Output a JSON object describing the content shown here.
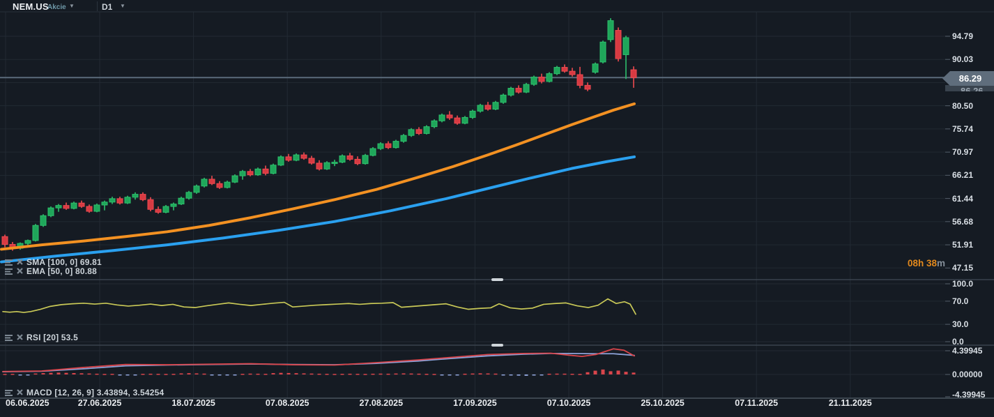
{
  "toolbar": {
    "symbol": "NEM.US",
    "instrument_type": "Akcie",
    "timeframe": "D1"
  },
  "timer": {
    "value": "08h 38",
    "unit": "m"
  },
  "price_tag": {
    "current": "86.29",
    "secondary": "86.26"
  },
  "indicator_labels": {
    "sma": "SMA [100, 0] 69.81",
    "ema": "EMA [50, 0] 80.88",
    "rsi": "RSI [20] 53.5",
    "macd": "MACD [12, 26, 9] 3.43894, 3.54254"
  },
  "price_axis_labels": [
    "94.79",
    "90.03",
    "80.50",
    "75.74",
    "70.97",
    "66.21",
    "61.44",
    "56.68",
    "51.91",
    "47.15"
  ],
  "rsi_axis_labels": [
    "100.0",
    "70.0",
    "30.0",
    "0.0"
  ],
  "macd_axis_labels": [
    "4.39945",
    "0.00000",
    "-4.39945"
  ],
  "date_axis_labels": [
    "06.06.2025",
    "27.06.2025",
    "18.07.2025",
    "07.08.2025",
    "27.08.2025",
    "17.09.2025",
    "07.10.2025",
    "25.10.2025",
    "07.11.2025",
    "21.11.2025"
  ],
  "colors": {
    "background": "#151b23",
    "grid": "#222a33",
    "separator": "#3a434e",
    "bottom_separator": "#4a545e",
    "price_line": "#5b6b7b",
    "candle_up": "#1fa65a",
    "candle_up_edge": "#2dc06c",
    "candle_down": "#d73a42",
    "candle_down_edge": "#ef4a50",
    "ema_line": "#f39122",
    "sma_line": "#2aa0ef",
    "rsi_line": "#c9c957",
    "macd_line": "#d8454b",
    "macd_signal": "#8fa3da",
    "timer_text": "#e2891d",
    "tag_bg": "#5f6d7c"
  },
  "chart_data": {
    "type": "candlestick",
    "title": "NEM.US Akcie D1",
    "y_axis": {
      "visible_ticks": [
        94.79,
        90.03,
        80.5,
        75.74,
        70.97,
        66.21,
        61.44,
        56.68,
        51.91,
        47.15
      ],
      "tick_step": 4.76,
      "current_price": 86.29,
      "range": [
        47.15,
        98.5
      ],
      "grid": true
    },
    "x_axis": {
      "tick_labels": [
        "06.06.2025",
        "27.06.2025",
        "18.07.2025",
        "07.08.2025",
        "27.08.2025",
        "17.09.2025",
        "07.10.2025",
        "25.10.2025",
        "07.11.2025",
        "21.11.2025"
      ],
      "grid": true
    },
    "candles_ohlc": [
      [
        53.6,
        54.0,
        51.4,
        52.0
      ],
      [
        52.0,
        52.5,
        50.7,
        51.2
      ],
      [
        51.2,
        52.4,
        50.9,
        52.2
      ],
      [
        52.2,
        53.0,
        51.8,
        52.8
      ],
      [
        52.8,
        56.2,
        52.6,
        55.9
      ],
      [
        55.9,
        58.2,
        55.6,
        57.9
      ],
      [
        57.9,
        59.8,
        57.6,
        59.5
      ],
      [
        59.5,
        60.3,
        58.7,
        60.0
      ],
      [
        60.0,
        60.6,
        59.1,
        59.4
      ],
      [
        59.4,
        60.8,
        59.2,
        60.5
      ],
      [
        60.5,
        61.0,
        59.5,
        59.8
      ],
      [
        59.8,
        60.2,
        58.5,
        58.8
      ],
      [
        58.8,
        60.4,
        58.6,
        60.1
      ],
      [
        60.1,
        61.0,
        59.0,
        60.7
      ],
      [
        60.7,
        61.8,
        60.3,
        61.4
      ],
      [
        61.4,
        61.8,
        60.2,
        60.5
      ],
      [
        60.5,
        62.0,
        60.3,
        61.7
      ],
      [
        61.7,
        62.7,
        61.2,
        62.3
      ],
      [
        62.3,
        62.7,
        60.9,
        61.2
      ],
      [
        61.2,
        61.7,
        58.8,
        59.2
      ],
      [
        59.2,
        59.8,
        58.3,
        58.6
      ],
      [
        58.6,
        60.1,
        58.4,
        59.8
      ],
      [
        59.8,
        60.6,
        59.0,
        60.3
      ],
      [
        60.3,
        61.8,
        60.1,
        61.5
      ],
      [
        61.5,
        63.0,
        61.2,
        62.7
      ],
      [
        62.7,
        64.3,
        62.4,
        64.0
      ],
      [
        64.0,
        65.7,
        63.7,
        65.4
      ],
      [
        65.4,
        66.1,
        64.2,
        64.5
      ],
      [
        64.5,
        65.0,
        63.4,
        63.7
      ],
      [
        63.7,
        65.1,
        63.5,
        64.8
      ],
      [
        64.8,
        66.4,
        64.6,
        66.1
      ],
      [
        66.1,
        67.3,
        65.3,
        67.0
      ],
      [
        67.0,
        67.5,
        66.0,
        66.3
      ],
      [
        66.3,
        67.8,
        66.1,
        67.5
      ],
      [
        67.5,
        68.2,
        66.2,
        66.6
      ],
      [
        66.6,
        68.6,
        66.4,
        68.3
      ],
      [
        68.3,
        70.3,
        68.1,
        70.0
      ],
      [
        70.0,
        70.6,
        69.0,
        69.3
      ],
      [
        69.3,
        70.7,
        69.1,
        70.4
      ],
      [
        70.4,
        70.9,
        69.4,
        69.7
      ],
      [
        69.7,
        70.2,
        68.4,
        68.7
      ],
      [
        68.7,
        69.3,
        67.2,
        67.5
      ],
      [
        67.5,
        69.1,
        67.3,
        68.8
      ],
      [
        68.8,
        69.4,
        68.1,
        68.9
      ],
      [
        68.9,
        70.5,
        68.7,
        70.2
      ],
      [
        70.2,
        70.8,
        69.2,
        69.5
      ],
      [
        69.5,
        70.1,
        68.3,
        68.6
      ],
      [
        68.6,
        70.6,
        68.4,
        70.3
      ],
      [
        70.3,
        72.0,
        70.1,
        71.7
      ],
      [
        71.7,
        73.0,
        71.4,
        72.7
      ],
      [
        72.7,
        73.2,
        71.6,
        71.9
      ],
      [
        71.9,
        73.5,
        71.7,
        73.2
      ],
      [
        73.2,
        74.7,
        72.9,
        74.4
      ],
      [
        74.4,
        75.9,
        74.1,
        75.6
      ],
      [
        75.6,
        76.1,
        74.5,
        74.8
      ],
      [
        74.8,
        76.5,
        74.6,
        76.2
      ],
      [
        76.2,
        77.7,
        75.9,
        77.4
      ],
      [
        77.4,
        78.9,
        77.1,
        78.6
      ],
      [
        78.6,
        79.4,
        77.6,
        78.0
      ],
      [
        78.0,
        78.5,
        76.6,
        76.9
      ],
      [
        76.9,
        78.4,
        76.7,
        78.1
      ],
      [
        78.1,
        79.7,
        77.8,
        79.4
      ],
      [
        79.4,
        80.9,
        79.1,
        80.6
      ],
      [
        80.6,
        81.3,
        79.5,
        79.8
      ],
      [
        79.8,
        81.5,
        79.6,
        81.2
      ],
      [
        81.2,
        83.0,
        80.9,
        82.7
      ],
      [
        82.7,
        84.4,
        82.4,
        84.1
      ],
      [
        84.1,
        84.7,
        83.0,
        83.3
      ],
      [
        83.3,
        85.2,
        83.1,
        84.9
      ],
      [
        84.9,
        86.7,
        84.6,
        86.4
      ],
      [
        86.4,
        87.1,
        85.1,
        85.5
      ],
      [
        85.5,
        87.4,
        85.3,
        87.1
      ],
      [
        87.1,
        88.7,
        86.8,
        88.4
      ],
      [
        88.4,
        89.0,
        87.3,
        87.6
      ],
      [
        87.6,
        88.3,
        86.5,
        86.9
      ],
      [
        86.9,
        88.5,
        84.1,
        84.7
      ],
      [
        84.7,
        85.3,
        83.5,
        83.9
      ],
      [
        87.4,
        89.4,
        87.1,
        89.1
      ],
      [
        89.5,
        93.9,
        89.2,
        93.6
      ],
      [
        94.1,
        98.5,
        93.6,
        98.0
      ],
      [
        96.0,
        96.6,
        89.6,
        90.2
      ],
      [
        91.0,
        94.9,
        86.0,
        94.5
      ],
      [
        87.9,
        88.6,
        84.2,
        86.29
      ]
    ],
    "overlays": [
      {
        "name": "EMA 50",
        "color": "#f39122",
        "last_value": 80.88,
        "points": [
          [
            2,
            51.0
          ],
          [
            60,
            51.9
          ],
          [
            120,
            52.7
          ],
          [
            180,
            53.6
          ],
          [
            240,
            54.6
          ],
          [
            300,
            55.9
          ],
          [
            360,
            57.5
          ],
          [
            420,
            59.3
          ],
          [
            480,
            61.2
          ],
          [
            540,
            63.3
          ],
          [
            600,
            65.8
          ],
          [
            650,
            68.0
          ],
          [
            700,
            70.4
          ],
          [
            740,
            72.4
          ],
          [
            780,
            74.5
          ],
          [
            820,
            76.6
          ],
          [
            850,
            78.1
          ],
          [
            880,
            79.6
          ],
          [
            910,
            80.9
          ]
        ]
      },
      {
        "name": "SMA 100",
        "color": "#2aa0ef",
        "last_value": 69.81,
        "points": [
          [
            2,
            48.4
          ],
          [
            80,
            49.6
          ],
          [
            160,
            50.7
          ],
          [
            240,
            51.9
          ],
          [
            320,
            53.3
          ],
          [
            400,
            54.9
          ],
          [
            480,
            56.7
          ],
          [
            560,
            58.9
          ],
          [
            640,
            61.4
          ],
          [
            700,
            63.5
          ],
          [
            760,
            65.6
          ],
          [
            820,
            67.6
          ],
          [
            870,
            69.0
          ],
          [
            910,
            70.0
          ]
        ]
      }
    ],
    "rsi": {
      "period": 20,
      "last_value": 53.5,
      "levels": [
        100,
        70,
        30,
        0
      ],
      "points": [
        [
          4,
          52
        ],
        [
          14,
          51
        ],
        [
          24,
          52
        ],
        [
          34,
          50.5
        ],
        [
          44,
          52
        ],
        [
          58,
          56
        ],
        [
          72,
          61
        ],
        [
          88,
          64
        ],
        [
          104,
          65.5
        ],
        [
          120,
          66.5
        ],
        [
          136,
          65
        ],
        [
          152,
          66.5
        ],
        [
          168,
          63.5
        ],
        [
          184,
          61.5
        ],
        [
          200,
          63
        ],
        [
          216,
          65
        ],
        [
          232,
          62.5
        ],
        [
          248,
          64.5
        ],
        [
          264,
          60
        ],
        [
          280,
          59
        ],
        [
          296,
          62
        ],
        [
          312,
          64.5
        ],
        [
          328,
          67
        ],
        [
          344,
          64.5
        ],
        [
          360,
          62.5
        ],
        [
          376,
          64.5
        ],
        [
          392,
          66.5
        ],
        [
          408,
          68
        ],
        [
          420,
          60
        ],
        [
          436,
          61.5
        ],
        [
          452,
          63
        ],
        [
          468,
          64
        ],
        [
          484,
          65
        ],
        [
          500,
          66
        ],
        [
          516,
          64.5
        ],
        [
          532,
          66
        ],
        [
          548,
          66.5
        ],
        [
          564,
          67.5
        ],
        [
          576,
          59.5
        ],
        [
          592,
          61
        ],
        [
          608,
          62.5
        ],
        [
          624,
          64
        ],
        [
          640,
          65.5
        ],
        [
          656,
          60
        ],
        [
          672,
          56
        ],
        [
          688,
          57.5
        ],
        [
          704,
          58.5
        ],
        [
          716,
          65.5
        ],
        [
          732,
          58.5
        ],
        [
          748,
          56.5
        ],
        [
          764,
          58
        ],
        [
          780,
          64.5
        ],
        [
          796,
          66
        ],
        [
          812,
          67
        ],
        [
          828,
          62
        ],
        [
          844,
          59
        ],
        [
          858,
          63
        ],
        [
          872,
          74
        ],
        [
          884,
          66
        ],
        [
          896,
          69
        ],
        [
          904,
          65
        ],
        [
          912,
          47.5
        ]
      ]
    },
    "macd": {
      "params": [
        12,
        26,
        9
      ],
      "macd_last": 3.43894,
      "signal_last": 3.54254,
      "scale": [
        4.39945,
        0.0,
        -4.39945
      ],
      "macd_points": [
        [
          4,
          0.55
        ],
        [
          60,
          0.65
        ],
        [
          120,
          1.3
        ],
        [
          180,
          1.85
        ],
        [
          240,
          1.8
        ],
        [
          300,
          1.9
        ],
        [
          360,
          2.0
        ],
        [
          420,
          1.8
        ],
        [
          480,
          1.75
        ],
        [
          540,
          2.2
        ],
        [
          600,
          2.7
        ],
        [
          650,
          3.2
        ],
        [
          700,
          3.7
        ],
        [
          750,
          3.9
        ],
        [
          790,
          3.95
        ],
        [
          815,
          3.6
        ],
        [
          835,
          3.35
        ],
        [
          855,
          3.7
        ],
        [
          880,
          4.75
        ],
        [
          895,
          4.5
        ],
        [
          910,
          3.44
        ]
      ],
      "signal_points": [
        [
          4,
          0.5
        ],
        [
          60,
          0.6
        ],
        [
          120,
          1.05
        ],
        [
          180,
          1.6
        ],
        [
          240,
          1.75
        ],
        [
          300,
          1.85
        ],
        [
          360,
          1.95
        ],
        [
          420,
          1.85
        ],
        [
          480,
          1.8
        ],
        [
          540,
          2.05
        ],
        [
          600,
          2.5
        ],
        [
          650,
          3.0
        ],
        [
          700,
          3.45
        ],
        [
          750,
          3.75
        ],
        [
          790,
          3.9
        ],
        [
          820,
          3.9
        ],
        [
          850,
          3.85
        ],
        [
          880,
          3.85
        ],
        [
          910,
          3.54
        ]
      ],
      "histogram": [
        0.1,
        0.12,
        -0.08,
        -0.1,
        0.18,
        0.25,
        0.3,
        0.34,
        0.3,
        0.26,
        0.22,
        0.18,
        0.14,
        0.1,
        0.12,
        -0.08,
        -0.1,
        -0.08,
        0.12,
        0.14,
        0.12,
        0.1,
        0.12,
        0.2,
        0.24,
        0.2,
        0.16,
        -0.1,
        -0.14,
        -0.12,
        -0.1,
        0.12,
        0.16,
        0.14,
        0.12,
        0.25,
        0.3,
        0.27,
        0.24,
        0.2,
        0.17,
        0.14,
        0.12,
        0.1,
        0.12,
        0.14,
        0.12,
        0.1,
        0.14,
        0.16,
        0.14,
        0.18,
        0.2,
        0.18,
        0.15,
        0.12,
        0.1,
        -0.1,
        -0.13,
        -0.11,
        0.14,
        0.18,
        0.21,
        0.19,
        0.16,
        -0.12,
        -0.18,
        -0.22,
        -0.25,
        -0.2,
        -0.15,
        0.14,
        0.16,
        0.15,
        0.13,
        0.1,
        0.42,
        0.7,
        0.92,
        0.6,
        0.72,
        0.5,
        0.35
      ]
    }
  }
}
